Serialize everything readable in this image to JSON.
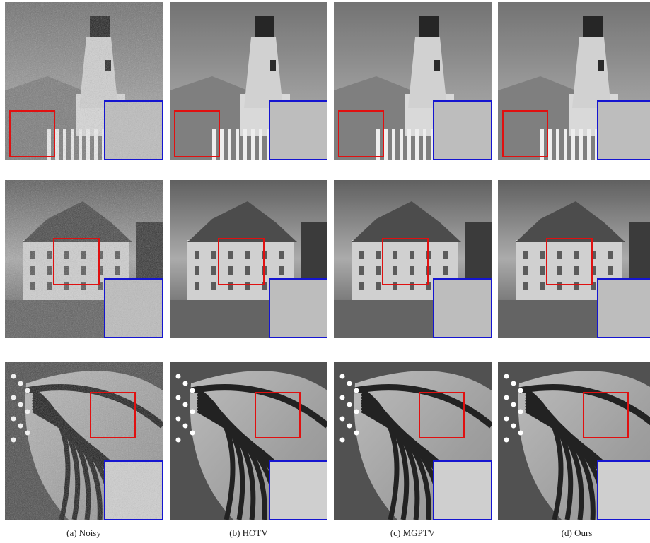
{
  "figure": {
    "captions": [
      "(a) Noisy",
      "(b) HOTV",
      "(c) MGPTV",
      "(d) Ours"
    ]
  }
}
